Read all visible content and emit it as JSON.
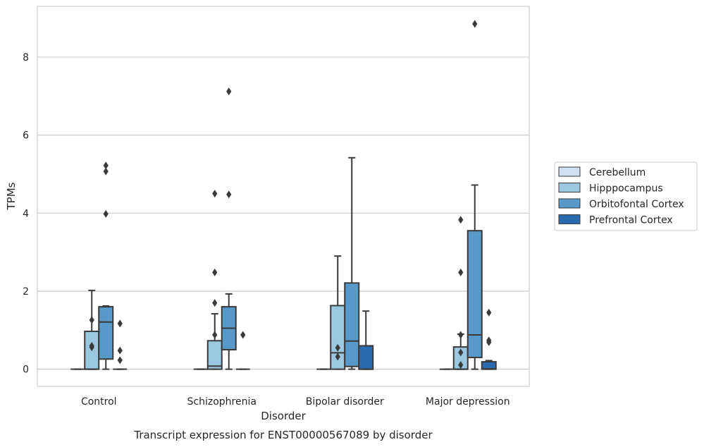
{
  "chart_data": {
    "type": "box",
    "caption": "Transcript expression for ENST00000567089 by disorder",
    "xlabel": "Disorder",
    "ylabel": "TPMs",
    "categories": [
      "Control",
      "Schizophrenia",
      "Bipolar disorder",
      "Major depression"
    ],
    "y_ticks": [
      0,
      2,
      4,
      6,
      8
    ],
    "ylim": [
      -0.44,
      9.3
    ],
    "grid": "horizontal",
    "legend_position": "right",
    "series": [
      {
        "name": "Cerebellum",
        "color": "#d0e2f2",
        "boxes": [
          {
            "whisker_low": 0,
            "q1": 0,
            "median": 0,
            "q3": 0,
            "whisker_high": 0,
            "outliers": []
          },
          {
            "whisker_low": 0,
            "q1": 0,
            "median": 0,
            "q3": 0,
            "whisker_high": 0,
            "outliers": []
          },
          {
            "whisker_low": 0,
            "q1": 0,
            "median": 0,
            "q3": 0,
            "whisker_high": 0,
            "outliers": []
          },
          {
            "whisker_low": 0,
            "q1": 0,
            "median": 0,
            "q3": 0,
            "whisker_high": 0,
            "outliers": []
          }
        ]
      },
      {
        "name": "Hipppocampus",
        "color": "#9ac8e0",
        "boxes": [
          {
            "whisker_low": 0,
            "q1": 0,
            "median": 0,
            "q3": 0.97,
            "whisker_high": 2.02,
            "outliers": [
              1.26,
              0.6,
              0.56
            ]
          },
          {
            "whisker_low": 0,
            "q1": 0,
            "median": 0.08,
            "q3": 0.73,
            "whisker_high": 1.42,
            "outliers": [
              1.7,
              0.88,
              2.48,
              4.5
            ]
          },
          {
            "whisker_low": 0,
            "q1": 0,
            "median": 0.42,
            "q3": 1.63,
            "whisker_high": 2.9,
            "outliers": [
              0.55,
              0.32
            ]
          },
          {
            "whisker_low": 0,
            "q1": 0,
            "median": 0,
            "q3": 0.57,
            "whisker_high": 0.9,
            "outliers": [
              0.88,
              0.43,
              0.11,
              2.48,
              3.83
            ]
          }
        ]
      },
      {
        "name": "Orbitofontal Cortex",
        "color": "#5899c9",
        "boxes": [
          {
            "whisker_low": 0,
            "q1": 0.26,
            "median": 1.21,
            "q3": 1.6,
            "whisker_high": 1.62,
            "outliers": [
              3.98,
              5.07,
              5.22
            ]
          },
          {
            "whisker_low": 0,
            "q1": 0.5,
            "median": 1.05,
            "q3": 1.6,
            "whisker_high": 1.93,
            "outliers": [
              4.48,
              7.12
            ]
          },
          {
            "whisker_low": 0,
            "q1": 0.07,
            "median": 0.72,
            "q3": 2.21,
            "whisker_high": 5.42,
            "outliers": []
          },
          {
            "whisker_low": 0,
            "q1": 0.3,
            "median": 0.88,
            "q3": 3.55,
            "whisker_high": 4.72,
            "outliers": [
              8.85
            ]
          }
        ]
      },
      {
        "name": "Prefrontal Cortex",
        "color": "#2b6aad",
        "boxes": [
          {
            "whisker_low": 0,
            "q1": 0,
            "median": 0,
            "q3": 0,
            "whisker_high": 0,
            "outliers": [
              1.17,
              0.48,
              0.23
            ]
          },
          {
            "whisker_low": 0,
            "q1": 0,
            "median": 0,
            "q3": 0,
            "whisker_high": 0,
            "outliers": [
              0.88
            ]
          },
          {
            "whisker_low": 0,
            "q1": 0,
            "median": 0,
            "q3": 0.6,
            "whisker_high": 1.49,
            "outliers": []
          },
          {
            "whisker_low": 0,
            "q1": 0,
            "median": 0.01,
            "q3": 0.19,
            "whisker_high": 0.22,
            "outliers": [
              1.45,
              0.74,
              0.69
            ]
          }
        ]
      }
    ]
  }
}
